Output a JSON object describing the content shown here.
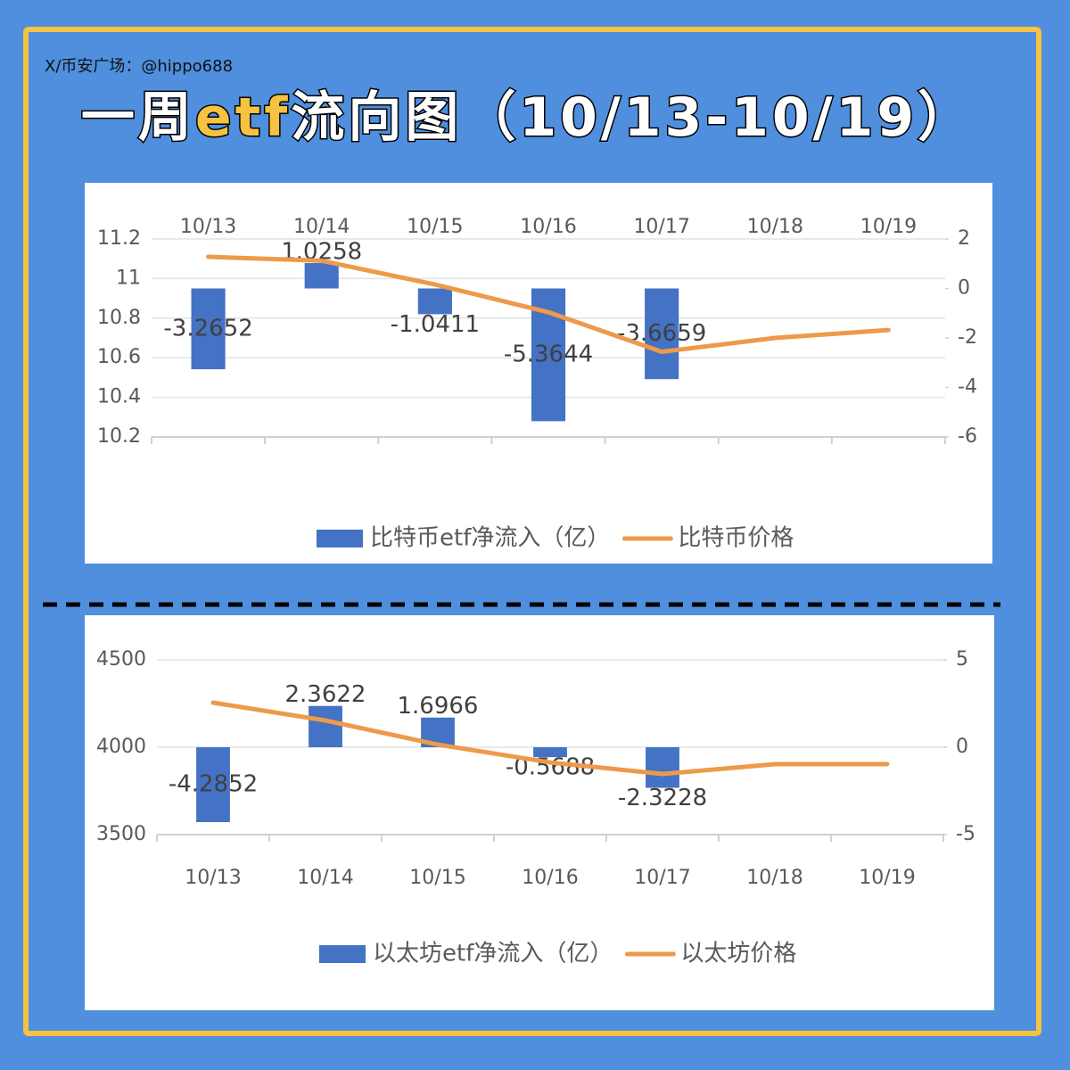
{
  "header": {
    "source": "X/币安广场：@hippo688",
    "title_parts": [
      "一周",
      "etf",
      "流向图（10/13-10/19）"
    ]
  },
  "chart_data": [
    {
      "type": "combo",
      "categories": [
        "10/13",
        "10/14",
        "10/15",
        "10/16",
        "10/17",
        "10/18",
        "10/19"
      ],
      "series": [
        {
          "name": "比特币etf净流入（亿）",
          "type": "bar",
          "axis": "y2",
          "color": "#4472c4",
          "values": [
            -3.2652,
            1.0258,
            -1.0411,
            -5.3644,
            -3.6659,
            null,
            null
          ]
        },
        {
          "name": "比特币价格",
          "type": "line",
          "color": "#ed9a4b",
          "values": [
            11.11,
            11.09,
            10.97,
            10.83,
            10.63,
            10.7,
            10.74
          ]
        }
      ],
      "ylim": [
        10.2,
        11.2
      ],
      "yticks": [
        10.2,
        10.4,
        10.6,
        10.8,
        11,
        11.2
      ],
      "y2lim": [
        -6,
        2
      ],
      "y2ticks": [
        -6,
        -4,
        -2,
        0,
        2
      ],
      "grid": true
    },
    {
      "type": "combo",
      "categories": [
        "10/13",
        "10/14",
        "10/15",
        "10/16",
        "10/17",
        "10/18",
        "10/19"
      ],
      "series": [
        {
          "name": "以太坊etf净流入（亿）",
          "type": "bar",
          "axis": "y2",
          "color": "#4472c4",
          "values": [
            -4.2852,
            2.3622,
            1.6966,
            -0.5688,
            -2.3228,
            null,
            null
          ]
        },
        {
          "name": "以太坊价格",
          "type": "line",
          "color": "#ed9a4b",
          "values": [
            4255,
            4153,
            4015,
            3913,
            3847,
            3903,
            3903
          ]
        }
      ],
      "ylim": [
        3500,
        4500
      ],
      "yticks": [
        3500,
        4000,
        4500
      ],
      "y2lim": [
        -5,
        5
      ],
      "y2ticks": [
        -5,
        0,
        5
      ],
      "grid": true
    }
  ]
}
